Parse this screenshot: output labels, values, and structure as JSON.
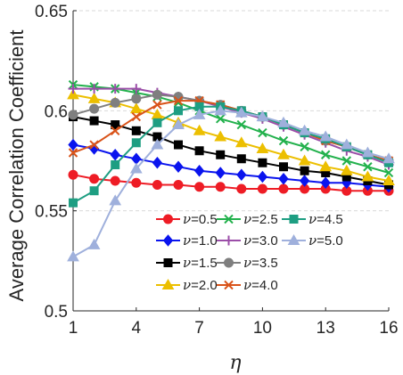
{
  "chart_data": {
    "type": "line",
    "xlabel": "η",
    "ylabel": "Average Correlation Coefficient",
    "xlim": [
      1,
      16
    ],
    "ylim": [
      0.5,
      0.65
    ],
    "x_ticks": [
      1,
      4,
      7,
      10,
      13,
      16
    ],
    "y_ticks": [
      0.5,
      0.55,
      0.6,
      0.65
    ],
    "x_tick_labels": [
      "1",
      "4",
      "7",
      "10",
      "13",
      "16"
    ],
    "y_tick_labels": [
      "0.5",
      "0.55",
      "0.6",
      "0.65"
    ],
    "grid": "horizontal dashed",
    "legend_placement": "lower-right, 3 columns",
    "x": [
      1,
      2,
      3,
      4,
      5,
      6,
      7,
      8,
      9,
      10,
      11,
      12,
      13,
      14,
      15,
      16
    ],
    "series": [
      {
        "name_prefix": "ν",
        "name_value": "=0.5",
        "color": "#ee1c25",
        "marker": "circle",
        "values": [
          0.568,
          0.566,
          0.565,
          0.564,
          0.563,
          0.563,
          0.562,
          0.562,
          0.561,
          0.561,
          0.561,
          0.561,
          0.561,
          0.56,
          0.56,
          0.56
        ]
      },
      {
        "name_prefix": "ν",
        "name_value": "=1.0",
        "color": "#0a14ee",
        "marker": "diamond",
        "values": [
          0.583,
          0.581,
          0.578,
          0.576,
          0.574,
          0.572,
          0.57,
          0.569,
          0.568,
          0.567,
          0.566,
          0.565,
          0.564,
          0.564,
          0.563,
          0.562
        ]
      },
      {
        "name_prefix": "ν",
        "name_value": "=1.5",
        "color": "#000000",
        "marker": "square",
        "values": [
          0.597,
          0.595,
          0.593,
          0.59,
          0.587,
          0.583,
          0.58,
          0.578,
          0.576,
          0.574,
          0.572,
          0.57,
          0.569,
          0.567,
          0.565,
          0.563
        ]
      },
      {
        "name_prefix": "ν",
        "name_value": "=2.0",
        "color": "#ecbf00",
        "marker": "triangle",
        "values": [
          0.608,
          0.606,
          0.604,
          0.601,
          0.598,
          0.594,
          0.59,
          0.587,
          0.584,
          0.581,
          0.578,
          0.575,
          0.572,
          0.57,
          0.567,
          0.565
        ]
      },
      {
        "name_prefix": "ν",
        "name_value": "=2.5",
        "color": "#22b14c",
        "marker": "x",
        "values": [
          0.613,
          0.612,
          0.611,
          0.609,
          0.607,
          0.604,
          0.6,
          0.596,
          0.593,
          0.589,
          0.585,
          0.582,
          0.578,
          0.575,
          0.572,
          0.569
        ]
      },
      {
        "name_prefix": "ν",
        "name_value": "=3.0",
        "color": "#9b4ea8",
        "marker": "plus",
        "values": [
          0.611,
          0.611,
          0.611,
          0.611,
          0.609,
          0.607,
          0.605,
          0.602,
          0.599,
          0.596,
          0.592,
          0.588,
          0.584,
          0.58,
          0.577,
          0.573
        ]
      },
      {
        "name_prefix": "ν",
        "name_value": "=3.5",
        "color": "#7f7f7f",
        "marker": "circle",
        "values": [
          0.598,
          0.601,
          0.604,
          0.606,
          0.608,
          0.607,
          0.605,
          0.603,
          0.6,
          0.597,
          0.593,
          0.589,
          0.585,
          0.582,
          0.578,
          0.575
        ]
      },
      {
        "name_prefix": "ν",
        "name_value": "=4.0",
        "color": "#d95319",
        "marker": "x",
        "values": [
          0.579,
          0.583,
          0.59,
          0.597,
          0.603,
          0.605,
          0.605,
          0.603,
          0.6,
          0.597,
          0.593,
          0.589,
          0.585,
          0.582,
          0.578,
          0.575
        ]
      },
      {
        "name_prefix": "ν",
        "name_value": "=4.5",
        "color": "#1e9e82",
        "marker": "square",
        "values": [
          0.554,
          0.56,
          0.573,
          0.584,
          0.594,
          0.6,
          0.602,
          0.602,
          0.6,
          0.597,
          0.593,
          0.589,
          0.586,
          0.582,
          0.578,
          0.574
        ]
      },
      {
        "name_prefix": "ν",
        "name_value": "=5.0",
        "color": "#9fb0dc",
        "marker": "triangle",
        "values": [
          0.527,
          0.533,
          0.555,
          0.571,
          0.583,
          0.593,
          0.598,
          0.6,
          0.599,
          0.597,
          0.594,
          0.59,
          0.587,
          0.583,
          0.579,
          0.576
        ]
      }
    ]
  }
}
